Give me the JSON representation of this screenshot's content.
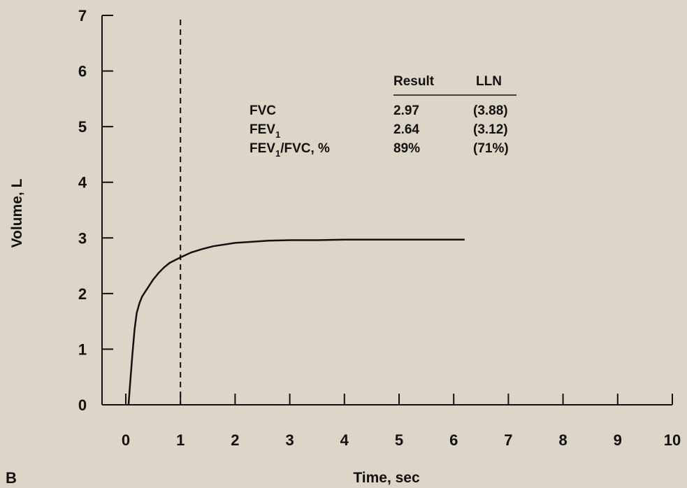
{
  "chart_data": {
    "type": "line",
    "panel_label": "B",
    "xlabel": "Time, sec",
    "ylabel": "Volume, L",
    "xlim": [
      0,
      10
    ],
    "ylim": [
      0,
      7
    ],
    "x_ticks": [
      "0",
      "1",
      "2",
      "3",
      "4",
      "5",
      "6",
      "7",
      "8",
      "9",
      "10"
    ],
    "y_ticks": [
      "0",
      "1",
      "2",
      "3",
      "4",
      "5",
      "6",
      "7"
    ],
    "reference_line_x": 1,
    "series": [
      {
        "x": [
          0.05,
          0.08,
          0.12,
          0.16,
          0.2,
          0.25,
          0.3,
          0.4,
          0.5,
          0.6,
          0.7,
          0.8,
          0.9,
          1.0,
          1.2,
          1.4,
          1.6,
          1.8,
          2.0,
          2.3,
          2.6,
          3.0,
          3.5,
          4.0,
          4.5,
          5.0,
          5.5,
          6.0,
          6.2
        ],
        "y": [
          0.0,
          0.4,
          0.9,
          1.35,
          1.65,
          1.83,
          1.95,
          2.1,
          2.25,
          2.37,
          2.47,
          2.55,
          2.6,
          2.65,
          2.74,
          2.8,
          2.85,
          2.88,
          2.91,
          2.93,
          2.95,
          2.96,
          2.96,
          2.97,
          2.97,
          2.97,
          2.97,
          2.97,
          2.97
        ]
      }
    ],
    "table": {
      "headers": [
        "Result",
        "LLN"
      ],
      "rows": [
        {
          "label": "FVC",
          "sub": "",
          "suffix": "",
          "result": "2.97",
          "lln": "(3.88)"
        },
        {
          "label": "FEV",
          "sub": "1",
          "suffix": "",
          "result": "2.64",
          "lln": "(3.12)"
        },
        {
          "label": "FEV",
          "sub": "1",
          "suffix": "/FVC, %",
          "result": "89%",
          "lln": "(71%)"
        }
      ]
    },
    "colors": {
      "background": "#ddd5c7",
      "ink": "#111111"
    }
  }
}
